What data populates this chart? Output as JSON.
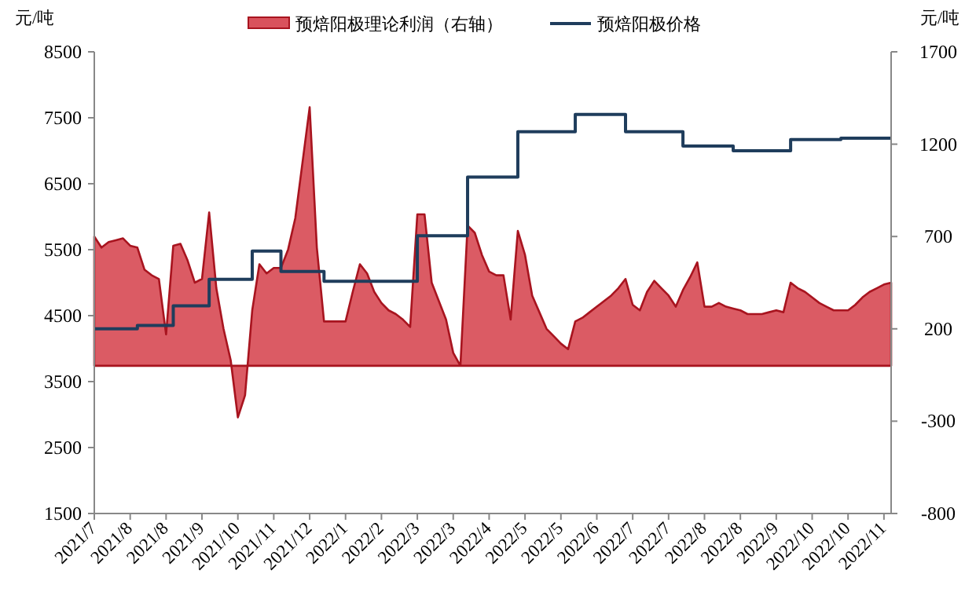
{
  "chart_data": {
    "type": "area",
    "ylabel": "元/吨",
    "y2label": "元/吨",
    "categories": [
      "2021/7",
      null,
      null,
      null,
      null,
      "2021/8",
      null,
      null,
      null,
      null,
      "2021/8",
      null,
      null,
      null,
      null,
      "2021/9",
      null,
      null,
      null,
      null,
      "2021/10",
      null,
      null,
      null,
      null,
      "2021/11",
      null,
      null,
      null,
      null,
      "2021/12",
      null,
      null,
      null,
      null,
      "2022/1",
      null,
      null,
      null,
      null,
      "2022/2",
      null,
      null,
      null,
      null,
      "2022/3",
      null,
      null,
      null,
      null,
      "2022/3",
      null,
      null,
      null,
      null,
      "2022/4",
      null,
      null,
      null,
      null,
      "2022/5",
      null,
      null,
      null,
      null,
      "2022/5",
      null,
      null,
      null,
      null,
      "2022/6",
      null,
      null,
      null,
      null,
      "2022/7",
      null,
      null,
      null,
      null,
      "2022/7",
      null,
      null,
      null,
      null,
      "2022/8",
      null,
      null,
      null,
      null,
      "2022/8",
      null,
      null,
      null,
      null,
      "2022/9",
      null,
      null,
      null,
      null,
      "2022/10",
      null,
      null,
      null,
      null,
      "2022/10",
      null,
      null,
      null,
      null,
      "2022/11",
      null
    ],
    "ylim": [
      1500,
      8500
    ],
    "yticks": [
      1500,
      2500,
      3500,
      4500,
      5500,
      6500,
      7500,
      8500
    ],
    "y2lim": [
      -800,
      1700
    ],
    "y2ticks": [
      -800,
      -300,
      200,
      700,
      1200,
      1700
    ],
    "legend": "top",
    "grid": false,
    "series": [
      {
        "name": "预焙阳极理论利润（右轴）",
        "axis": "y2",
        "color": "#d9525c",
        "values": [
          700,
          640,
          670,
          680,
          690,
          650,
          640,
          520,
          490,
          470,
          170,
          650,
          660,
          570,
          450,
          470,
          830,
          420,
          200,
          30,
          -280,
          -160,
          300,
          550,
          500,
          530,
          530,
          630,
          800,
          1100,
          1400,
          640,
          240,
          240,
          240,
          240,
          400,
          550,
          500,
          400,
          340,
          300,
          280,
          250,
          210,
          820,
          820,
          450,
          350,
          250,
          70,
          0,
          760,
          720,
          600,
          510,
          490,
          490,
          250,
          730,
          600,
          380,
          290,
          200,
          160,
          120,
          90,
          240,
          260,
          290,
          320,
          350,
          380,
          420,
          470,
          330,
          300,
          400,
          460,
          420,
          380,
          320,
          410,
          480,
          560,
          320,
          320,
          340,
          320,
          310,
          300,
          280,
          280,
          280,
          290,
          300,
          290,
          450,
          420,
          400,
          370,
          340,
          320,
          300,
          300,
          300,
          330,
          370,
          400,
          420,
          440,
          450
        ]
      },
      {
        "name": "预焙阳极价格",
        "type": "step",
        "color": "#1f3d5c",
        "values": [
          4300,
          4300,
          4300,
          4300,
          4300,
          4300,
          4350,
          4350,
          4350,
          4350,
          4350,
          4650,
          4650,
          4650,
          4650,
          4650,
          5050,
          5050,
          5050,
          5050,
          5050,
          5050,
          5480,
          5480,
          5480,
          5480,
          5170,
          5170,
          5170,
          5170,
          5170,
          5170,
          5020,
          5020,
          5020,
          5020,
          5020,
          5020,
          5020,
          5020,
          5020,
          5020,
          5020,
          5020,
          5020,
          5710,
          5710,
          5710,
          5710,
          5710,
          5710,
          5710,
          6600,
          6600,
          6600,
          6600,
          6600,
          6600,
          6600,
          7290,
          7290,
          7290,
          7290,
          7290,
          7290,
          7290,
          7290,
          7550,
          7550,
          7550,
          7550,
          7550,
          7550,
          7550,
          7290,
          7290,
          7290,
          7290,
          7290,
          7290,
          7290,
          7290,
          7070,
          7070,
          7070,
          7070,
          7070,
          7070,
          7070,
          7000,
          7000,
          7000,
          7000,
          7000,
          7000,
          7000,
          7000,
          7170,
          7170,
          7170,
          7170,
          7170,
          7170,
          7170,
          7190,
          7190,
          7190,
          7190,
          7190,
          7190,
          7190,
          7190
        ]
      }
    ]
  }
}
